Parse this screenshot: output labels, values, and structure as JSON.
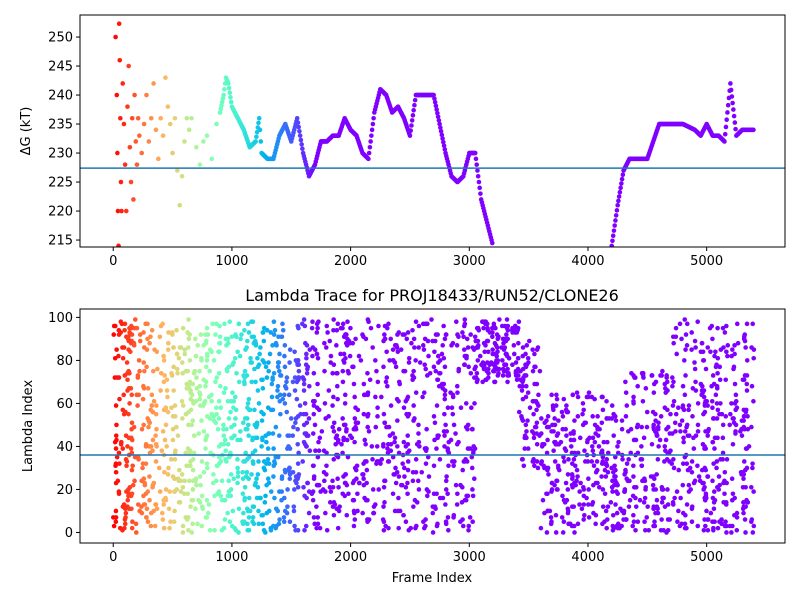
{
  "chart_data": [
    {
      "type": "scatter",
      "title": "",
      "xlabel": "",
      "ylabel": "ΔG (kT)",
      "xlim": [
        -280,
        5660
      ],
      "ylim": [
        213.8,
        253.8
      ],
      "xticks": [
        0,
        1000,
        2000,
        3000,
        4000,
        5000
      ],
      "yticks": [
        215,
        220,
        225,
        230,
        235,
        240,
        245,
        250
      ],
      "colormap": "rainbow (early frames red → late frames violet)",
      "hline": {
        "y": 227.4,
        "color": "#1f77b4"
      },
      "series": [
        {
          "values": [
            [
              20,
              250
            ],
            [
              30,
              240
            ],
            [
              35,
              230
            ],
            [
              40,
              220
            ],
            [
              45,
              214
            ],
            [
              50,
              252.3
            ],
            [
              55,
              246
            ],
            [
              60,
              236
            ],
            [
              65,
              225
            ],
            [
              70,
              220
            ],
            [
              80,
              242
            ],
            [
              90,
              235
            ],
            [
              100,
              228
            ],
            [
              110,
              220
            ],
            [
              120,
              238
            ],
            [
              130,
              245
            ],
            [
              140,
              231
            ],
            [
              150,
              225
            ],
            [
              160,
              236
            ],
            [
              170,
              222
            ],
            [
              180,
              240
            ],
            [
              190,
              232
            ],
            [
              200,
              228
            ],
            [
              210,
              236
            ],
            [
              220,
              233
            ],
            [
              240,
              230
            ],
            [
              260,
              235
            ],
            [
              280,
              240
            ],
            [
              300,
              232
            ],
            [
              320,
              236
            ],
            [
              340,
              242
            ],
            [
              360,
              234
            ],
            [
              380,
              229
            ],
            [
              400,
              236
            ],
            [
              420,
              233
            ],
            [
              440,
              243
            ],
            [
              460,
              238
            ],
            [
              480,
              235
            ],
            [
              500,
              230
            ],
            [
              520,
              236
            ],
            [
              540,
              227
            ],
            [
              560,
              221
            ],
            [
              580,
              226
            ],
            [
              600,
              232
            ],
            [
              620,
              236
            ],
            [
              640,
              234
            ],
            [
              660,
              236
            ],
            [
              700,
              231
            ],
            [
              730,
              228
            ],
            [
              760,
              232
            ],
            [
              790,
              233
            ],
            [
              830,
              229
            ],
            [
              870,
              235
            ],
            [
              900,
              237
            ],
            [
              930,
              240
            ],
            [
              950,
              243
            ],
            [
              970,
              242
            ],
            [
              1000,
              238
            ],
            [
              1050,
              236
            ],
            [
              1100,
              234
            ],
            [
              1150,
              231
            ],
            [
              1200,
              232
            ],
            [
              1230,
              236
            ],
            [
              1250,
              230
            ],
            [
              1300,
              229
            ],
            [
              1350,
              229
            ],
            [
              1400,
              233
            ],
            [
              1450,
              235
            ],
            [
              1500,
              232
            ],
            [
              1550,
              236
            ],
            [
              1600,
              230
            ],
            [
              1650,
              226
            ],
            [
              1700,
              228
            ],
            [
              1750,
              232
            ],
            [
              1800,
              232
            ],
            [
              1850,
              233
            ],
            [
              1900,
              233
            ],
            [
              1950,
              236
            ],
            [
              2000,
              234
            ],
            [
              2050,
              233
            ],
            [
              2100,
              230
            ],
            [
              2150,
              229
            ],
            [
              2200,
              237
            ],
            [
              2250,
              241
            ],
            [
              2300,
              240
            ],
            [
              2350,
              237
            ],
            [
              2400,
              238
            ],
            [
              2450,
              236
            ],
            [
              2500,
              233
            ],
            [
              2550,
              240
            ],
            [
              2600,
              240
            ],
            [
              2650,
              240
            ],
            [
              2700,
              240
            ],
            [
              2750,
              235
            ],
            [
              2800,
              230
            ],
            [
              2850,
              226
            ],
            [
              2900,
              225
            ],
            [
              2950,
              226
            ],
            [
              3000,
              230
            ],
            [
              3050,
              230
            ],
            [
              3100,
              222
            ],
            [
              3150,
              218
            ],
            [
              3200,
              214
            ],
            [
              4200,
              214
            ],
            [
              4250,
              221
            ],
            [
              4300,
              227
            ],
            [
              4350,
              229
            ],
            [
              4400,
              229
            ],
            [
              4500,
              229
            ],
            [
              4600,
              235
            ],
            [
              4700,
              235
            ],
            [
              4800,
              235
            ],
            [
              4900,
              234
            ],
            [
              4950,
              233
            ],
            [
              5000,
              235
            ],
            [
              5050,
              233
            ],
            [
              5100,
              233
            ],
            [
              5150,
              232
            ],
            [
              5200,
              242
            ],
            [
              5250,
              233
            ],
            [
              5300,
              234
            ],
            [
              5400,
              234
            ]
          ]
        }
      ]
    },
    {
      "type": "scatter",
      "title": "Lambda Trace for PROJ18433/RUN52/CLONE26",
      "xlabel": "Frame Index",
      "ylabel": "Lambda Index",
      "xlim": [
        -280,
        5660
      ],
      "ylim": [
        -4.9,
        103.9
      ],
      "xticks": [
        0,
        1000,
        2000,
        3000,
        4000,
        5000
      ],
      "yticks": [
        0,
        20,
        40,
        60,
        80,
        100
      ],
      "colormap": "rainbow (early frames red → late frames violet)",
      "hline": {
        "y": 36,
        "color": "#1f77b4"
      },
      "n_frames": 5400,
      "sampled_frames_shown": 3000,
      "series": [
        {
          "description_of_density": "lambda index sampled between 0 and 99 throughout; frames ~3050–3400 concentrated at 70–99; frames ~3600–4700 mostly 0–65; frames ~4700–5400 spread 0–99",
          "band_profile": [
            {
              "x_range": [
                0,
                3050
              ],
              "lambda_range": [
                0,
                99
              ]
            },
            {
              "x_range": [
                3050,
                3420
              ],
              "lambda_range": [
                70,
                99
              ]
            },
            {
              "x_range": [
                3420,
                3600
              ],
              "lambda_range": [
                30,
                90
              ]
            },
            {
              "x_range": [
                3600,
                4300
              ],
              "lambda_range": [
                0,
                65
              ]
            },
            {
              "x_range": [
                4300,
                4700
              ],
              "lambda_range": [
                0,
                75
              ]
            },
            {
              "x_range": [
                4700,
                5400
              ],
              "lambda_range": [
                0,
                99
              ]
            }
          ]
        }
      ]
    }
  ]
}
